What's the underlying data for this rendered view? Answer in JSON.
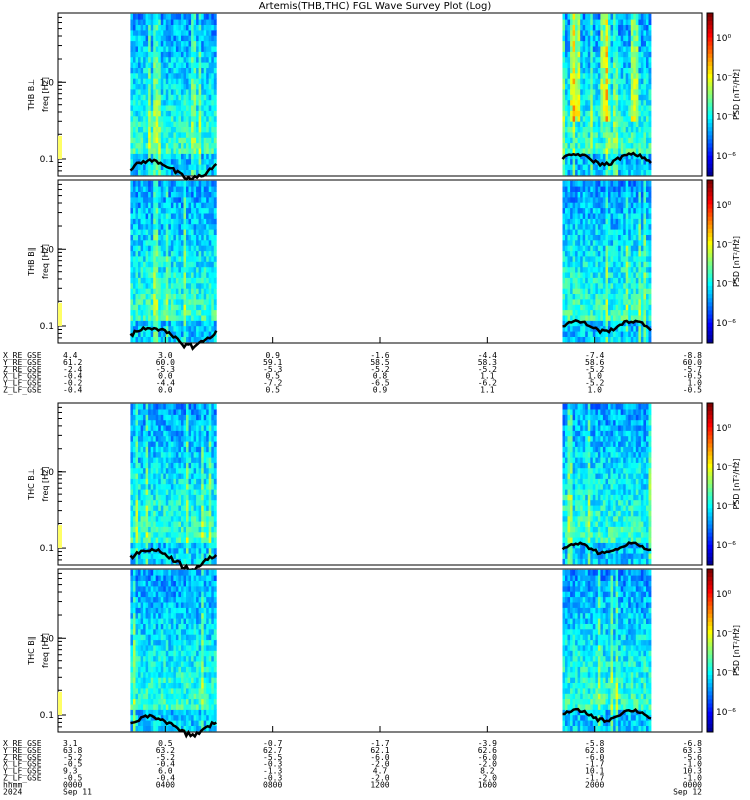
{
  "title": "Artemis(THB,THC) FGL Wave Survey Plot (Log)",
  "colors": {
    "accent": "#000000"
  },
  "chart_data": {
    "type": "heatmap",
    "time_range": [
      "2024-09-11 00:00",
      "2024-09-12 00:00"
    ],
    "ylim_hz": [
      0.06,
      8.0
    ],
    "yscale": "log",
    "yticks": [
      "0.1",
      "1.0"
    ],
    "colorbar": {
      "label": "PSD [nT²/Hz]",
      "ticks": [
        "10⁰",
        "10⁻²",
        "10⁻⁴",
        "10⁻⁶"
      ]
    },
    "data_intervals_hours": [
      [
        2.7,
        5.9
      ],
      [
        18.8,
        22.1
      ]
    ],
    "panels": [
      {
        "ylabel_probe": "THB B⊥",
        "ylabel_freq": "freq [Hz]",
        "activity": "b"
      },
      {
        "ylabel_probe": "THB B∥",
        "ylabel_freq": "freq [Hz]",
        "activity": "b"
      },
      {
        "ylabel_probe": "THC B⊥",
        "ylabel_freq": "freq [Hz]",
        "activity": "c"
      },
      {
        "ylabel_probe": "THC B∥",
        "ylabel_freq": "freq [Hz]",
        "activity": "c"
      }
    ],
    "ephemeris_thb": {
      "labels": [
        "X_RE_GSE",
        "Y_RE_GSE",
        "Z_RE_GSE",
        "X_LF_GSE",
        "Y_LF_GSE",
        "Z_LF_GSE"
      ],
      "rows": [
        [
          "4.4",
          "3.0",
          "0.9",
          "-1.6",
          "-4.4",
          "-7.4",
          "-8.8"
        ],
        [
          "61.2",
          "60.0",
          "59.1",
          "58.5",
          "58.3",
          "58.6",
          "60.0"
        ],
        [
          "-2.4",
          "-5.3",
          "-5.3",
          "-5.2",
          "-5.2",
          "-5.2",
          "-5.7"
        ],
        [
          "-0.4",
          "0.0",
          "0.5",
          "0.8",
          "1.1",
          "1.0",
          "-0.5"
        ],
        [
          "-0.2",
          "-4.4",
          "-7.2",
          "-6.5",
          "-6.2",
          "-5.2",
          "1.0"
        ],
        [
          "-0.4",
          "0.0",
          "0.5",
          "0.9",
          "1.1",
          "1.0",
          "-0.5"
        ]
      ]
    },
    "ephemeris_thc": {
      "labels": [
        "X_RE_GSE",
        "Y_RE_GSE",
        "Z_RE_GSE",
        "X_LF_GSE",
        "Y_LF_GSE",
        "Z_LF_GSE",
        "hhmm",
        "2024"
      ],
      "rows": [
        [
          "3.1",
          "0.5",
          "-0.7",
          "-1.7",
          "-3.9",
          "-5.8",
          "-6.8"
        ],
        [
          "63.8",
          "63.2",
          "62.7",
          "62.1",
          "62.6",
          "62.8",
          "63.3"
        ],
        [
          "-5.2",
          "-5.2",
          "-5.5",
          "-6.0",
          "-6.0",
          "-6.0",
          "-5.6"
        ],
        [
          "-0.5",
          "-0.4",
          "-0.3",
          "-2.0",
          "-2.0",
          "-1.7",
          "-1.0"
        ],
        [
          "9.3",
          "6.0",
          "-1.3",
          "4.7",
          "8.2",
          "10.1",
          "10.3"
        ],
        [
          "-0.5",
          "-0.4",
          "-0.3",
          "-2.0",
          "-2.0",
          "-1.7",
          "-1.0"
        ],
        [
          "0000",
          "0400",
          "0800",
          "1200",
          "1600",
          "2000",
          "0000"
        ],
        [
          "Sep 11",
          "",
          "",
          "",
          "",
          "",
          "Sep 12"
        ]
      ]
    }
  }
}
